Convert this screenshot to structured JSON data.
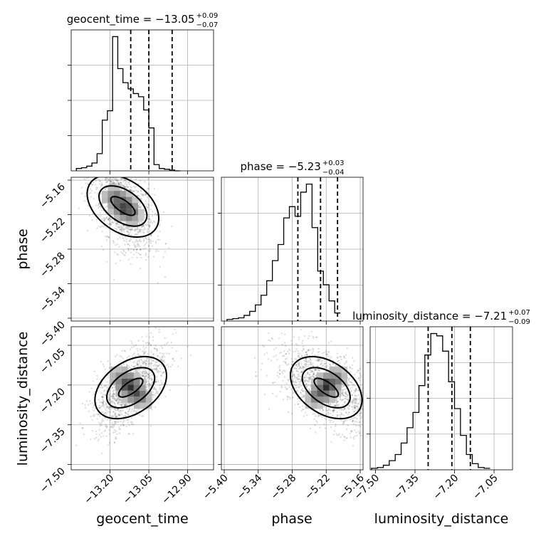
{
  "figure": "corner",
  "chart_data": [
    {
      "type": "histogram",
      "panel": "geocent_time",
      "title": "geocent_time = −13.05",
      "title_sup": "+0.09",
      "title_sub": "−0.07",
      "xlim": [
        -13.35,
        -12.8
      ],
      "bin_edges_start": -13.33,
      "bin_width": 0.02,
      "counts": [
        3,
        4,
        6,
        10,
        22,
        65,
        77,
        172,
        131,
        113,
        105,
        99,
        95,
        78,
        55,
        8,
        3,
        2,
        1,
        0
      ],
      "quantiles": [
        -13.12,
        -13.05,
        -12.96
      ],
      "x_ticks": [
        "−13.20",
        "−13.05",
        "−12.90"
      ]
    },
    {
      "type": "histogram",
      "panel": "phase",
      "title": "phase = −5.23",
      "title_sup": "+0.03",
      "title_sub": "−0.04",
      "xlim": [
        -5.405,
        -5.155
      ],
      "bin_edges_start": -5.395,
      "bin_width": 0.01,
      "counts": [
        2,
        3,
        4,
        7,
        12,
        20,
        32,
        50,
        75,
        95,
        128,
        142,
        130,
        160,
        170,
        116,
        62,
        45,
        25,
        10
      ],
      "quantiles": [
        -5.27,
        -5.23,
        -5.2
      ],
      "x_ticks": [
        "−5.40",
        "−5.34",
        "−5.28",
        "−5.22",
        "−5.16"
      ],
      "y_ticks": [
        "−5.16",
        "−5.22",
        "−5.28",
        "−5.34",
        "−5.40"
      ]
    },
    {
      "type": "histogram",
      "panel": "luminosity_distance",
      "title": "luminosity_distance = −7.21",
      "title_sup": "+0.07",
      "title_sub": "−0.09",
      "xlim": [
        -7.52,
        -6.98
      ],
      "bin_edges_start": -7.515,
      "bin_width": 0.0225,
      "counts": [
        2,
        3,
        6,
        12,
        20,
        35,
        55,
        75,
        110,
        150,
        178,
        175,
        155,
        115,
        80,
        45,
        20,
        8,
        3,
        2
      ],
      "quantiles": [
        -7.3,
        -7.21,
        -7.14
      ],
      "x_ticks": [
        "−7.50",
        "−7.35",
        "−7.20",
        "−7.05"
      ],
      "y_ticks": [
        "−7.05",
        "−7.20",
        "−7.35",
        "−7.50"
      ]
    },
    {
      "type": "scatter",
      "panel": "geocent_time vs phase",
      "x": "geocent_time",
      "y": "phase",
      "density_peak": [
        -13.15,
        -5.205
      ],
      "spread": [
        0.06,
        0.04
      ],
      "correlation": -0.5
    },
    {
      "type": "scatter",
      "panel": "geocent_time vs luminosity_distance",
      "x": "geocent_time",
      "y": "luminosity_distance",
      "density_peak": [
        -13.12,
        -7.21
      ],
      "spread": [
        0.07,
        0.08
      ],
      "correlation": 0.6
    },
    {
      "type": "scatter",
      "panel": "phase vs luminosity_distance",
      "x": "phase",
      "y": "luminosity_distance",
      "density_peak": [
        -5.22,
        -7.21
      ],
      "spread": [
        0.045,
        0.08
      ],
      "correlation": -0.55
    }
  ],
  "axis_labels": {
    "geocent_time": "geocent_time",
    "phase": "phase",
    "luminosity_distance": "luminosity_distance"
  },
  "geocent_time_ticks": [
    "−13.20",
    "−13.05",
    "−12.90"
  ]
}
